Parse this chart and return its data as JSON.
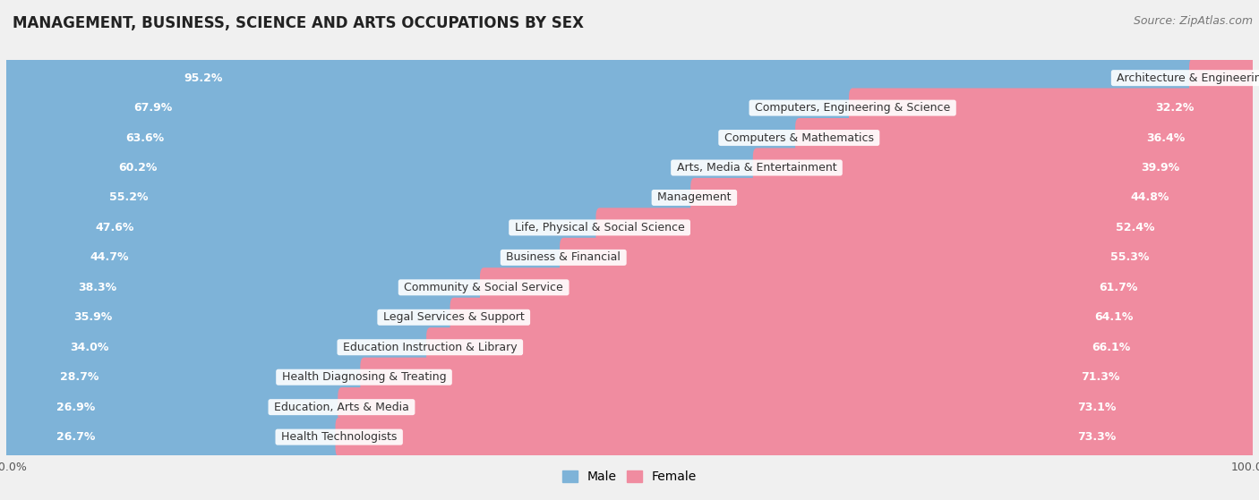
{
  "title": "MANAGEMENT, BUSINESS, SCIENCE AND ARTS OCCUPATIONS BY SEX",
  "source": "Source: ZipAtlas.com",
  "categories": [
    "Architecture & Engineering",
    "Computers, Engineering & Science",
    "Computers & Mathematics",
    "Arts, Media & Entertainment",
    "Management",
    "Life, Physical & Social Science",
    "Business & Financial",
    "Community & Social Service",
    "Legal Services & Support",
    "Education Instruction & Library",
    "Health Diagnosing & Treating",
    "Education, Arts & Media",
    "Health Technologists"
  ],
  "male_pct": [
    95.2,
    67.9,
    63.6,
    60.2,
    55.2,
    47.6,
    44.7,
    38.3,
    35.9,
    34.0,
    28.7,
    26.9,
    26.7
  ],
  "female_pct": [
    4.8,
    32.2,
    36.4,
    39.9,
    44.8,
    52.4,
    55.3,
    61.7,
    64.1,
    66.1,
    71.3,
    73.1,
    73.3
  ],
  "male_color": "#7eb3d8",
  "female_color": "#f08ca0",
  "bg_color": "#f0f0f0",
  "row_bg_even": "#ffffff",
  "row_bg_odd": "#e8e8e8",
  "title_fontsize": 12,
  "bar_label_fontsize": 9,
  "category_fontsize": 9,
  "legend_fontsize": 10,
  "source_fontsize": 9
}
